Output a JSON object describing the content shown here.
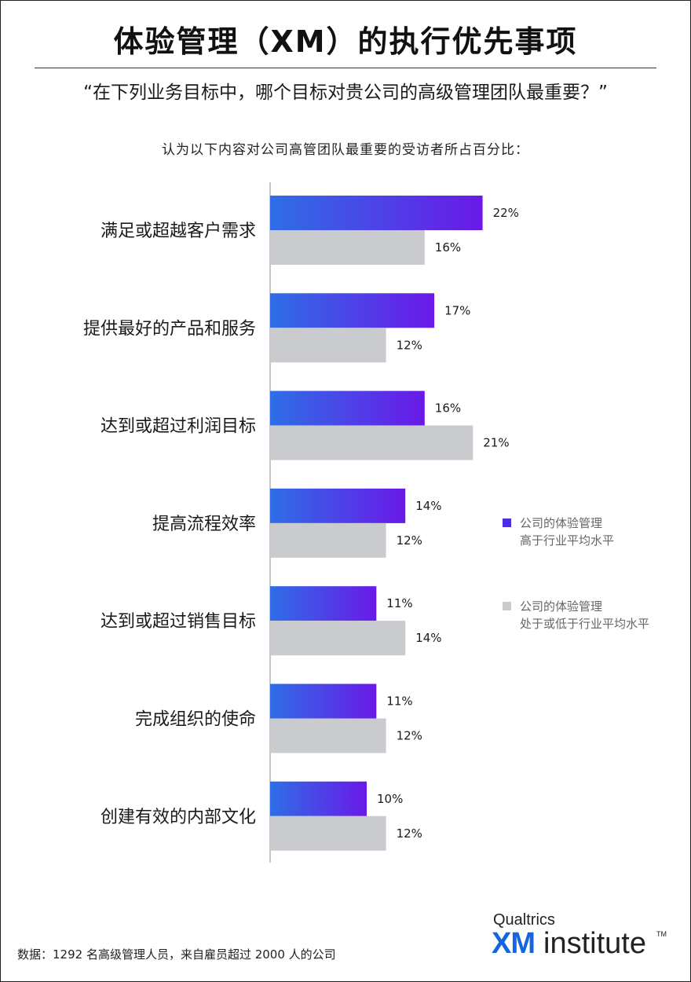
{
  "title": "体验管理（XM）的执行优先事项",
  "question": "“在下列业务目标中，哪个目标对贵公司的高级管理团队最重要？”",
  "subtitle": "认为以下内容对公司高管团队最重要的受访者所占百分比：",
  "source": "数据：1292 名高级管理人员，来自雇员超过 2000 人的公司",
  "logo": {
    "top": "Qualtrics",
    "xm": "XM",
    "institute": "institute",
    "tm": "TM"
  },
  "colors": {
    "gradient_start": "#2e6ee6",
    "gradient_end": "#6a19e8",
    "gray": "#cacbcf",
    "axis": "#b5b5b5"
  },
  "chart_data": {
    "type": "bar",
    "orientation": "horizontal",
    "title": "体验管理（XM）的执行优先事项",
    "categories": [
      "满足或超越客户需求",
      "提供最好的产品和服务",
      "达到或超过利润目标",
      "提高流程效率",
      "达到或超过销售目标",
      "完成组织的使命",
      "创建有效的内部文化"
    ],
    "series": [
      {
        "name": "公司的体验管理 高于行业平均水平",
        "legend_lines": [
          "公司的体验管理",
          "高于行业平均水平"
        ],
        "values": [
          22,
          17,
          16,
          14,
          11,
          11,
          10
        ],
        "labels": [
          "22%",
          "17%",
          "16%",
          "14%",
          "11%",
          "11%",
          "10%"
        ]
      },
      {
        "name": "公司的体验管理 处于或低于行业平均水平",
        "legend_lines": [
          "公司的体验管理",
          "处于或低于行业平均水平"
        ],
        "values": [
          16,
          12,
          21,
          12,
          14,
          12,
          12
        ],
        "labels": [
          "16%",
          "12%",
          "21%",
          "12%",
          "14%",
          "12%",
          "12%"
        ]
      }
    ],
    "unit": "%",
    "xlim": [
      0,
      22
    ],
    "legend_position": "right"
  }
}
